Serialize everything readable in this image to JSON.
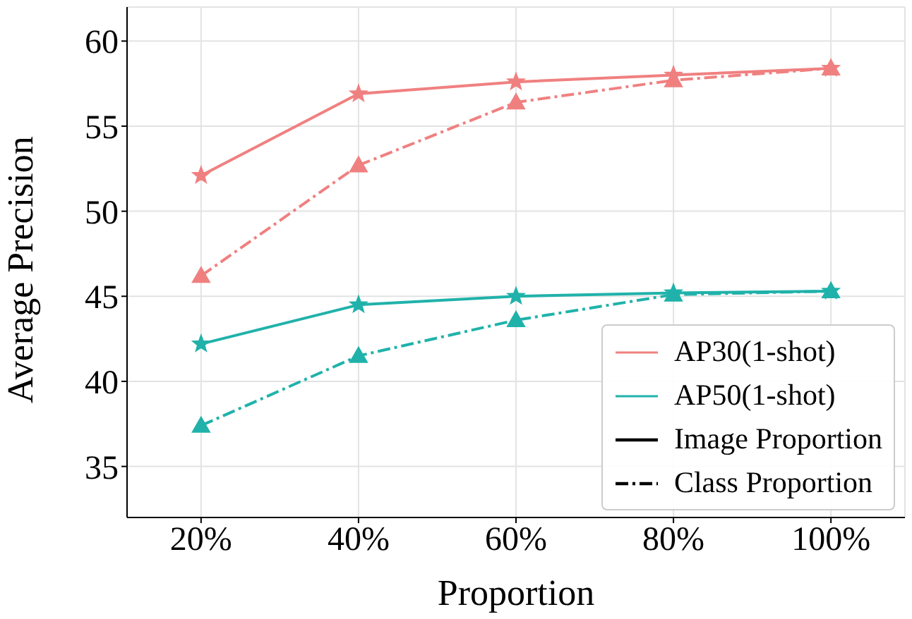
{
  "chart_data": {
    "type": "line",
    "xlabel": "Proportion",
    "ylabel": "Average Precision",
    "categories": [
      "20%",
      "40%",
      "60%",
      "80%",
      "100%"
    ],
    "series": [
      {
        "name": "AP30(1-shot)",
        "color": "#f08080",
        "values": [
          52.1,
          56.9,
          57.6,
          58.0,
          58.4
        ],
        "marker": "star",
        "line_style": "solid"
      },
      {
        "name": "AP50(1-shot)",
        "color": "#20b2aa",
        "values": [
          42.2,
          44.5,
          45.0,
          45.2,
          45.3
        ],
        "marker": "star",
        "line_style": "solid"
      },
      {
        "color": "#f08080",
        "values": [
          46.2,
          52.7,
          56.4,
          57.7,
          58.4
        ],
        "marker": "triangle",
        "line_style": "dashdot"
      },
      {
        "color": "#20b2aa",
        "values": [
          37.4,
          41.5,
          43.6,
          45.1,
          45.3
        ],
        "marker": "triangle",
        "line_style": "dashdot"
      }
    ],
    "annotations": [
      "Image Proportion",
      "Class Proportion"
    ],
    "ylim": [
      32,
      62
    ],
    "yticks": [
      35,
      40,
      45,
      50,
      55,
      60
    ],
    "grid": true,
    "legend": "bottom right"
  }
}
